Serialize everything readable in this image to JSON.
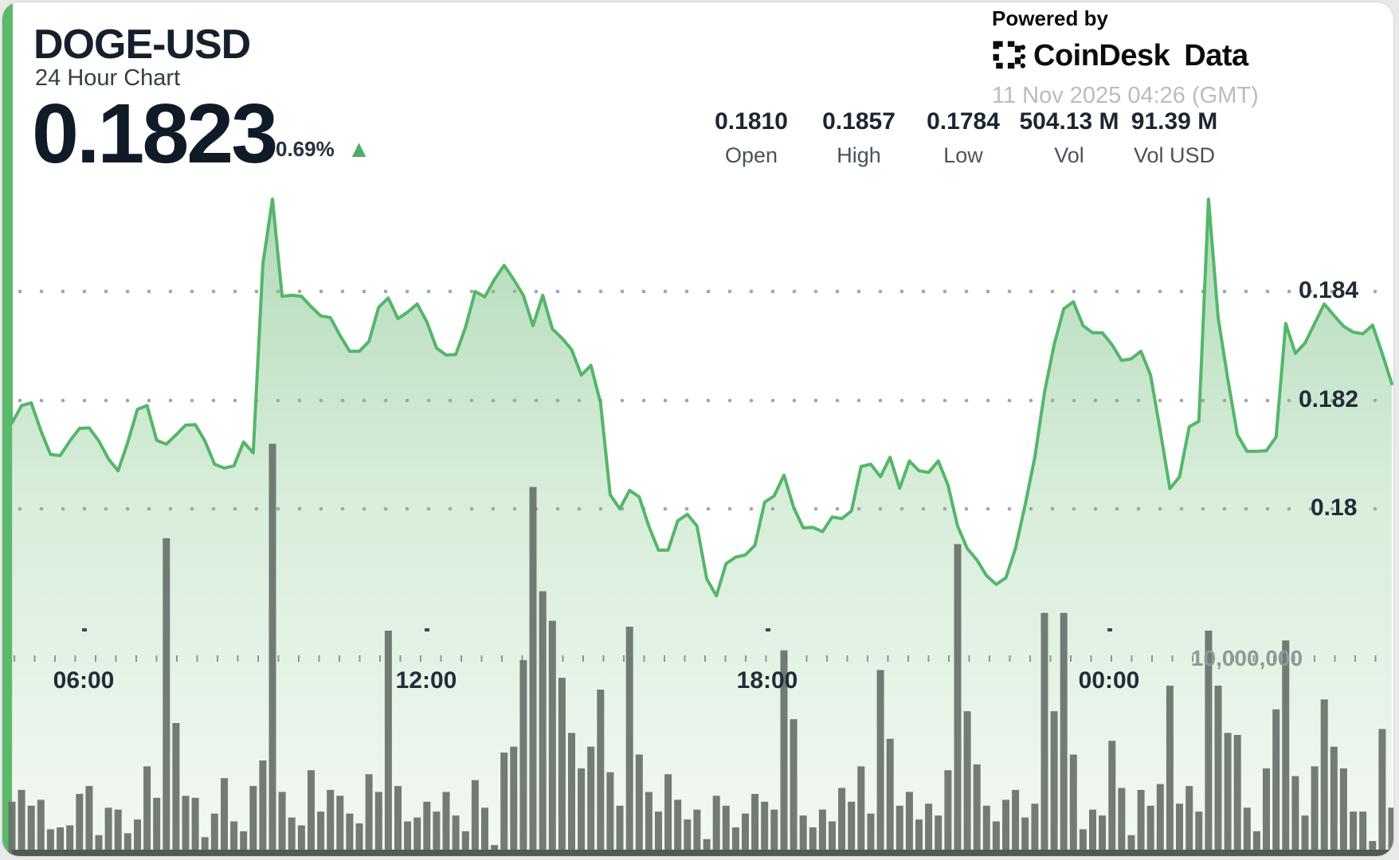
{
  "header": {
    "symbol": "DOGE-USD",
    "subtitle": "24 Hour Chart",
    "price": "0.1823",
    "change_percent": "0.69%",
    "change_direction": "up",
    "up_triangle": "▲"
  },
  "attribution": {
    "powered_by": "Powered by",
    "brand": "CoinDesk",
    "brand_suffix": "Data",
    "timestamp": "11 Nov 2025 04:26 (GMT)"
  },
  "stats": [
    {
      "value": "0.1810",
      "label": "Open"
    },
    {
      "value": "0.1857",
      "label": "High"
    },
    {
      "value": "0.1784",
      "label": "Low"
    },
    {
      "value": "504.13 M",
      "label": "Vol"
    },
    {
      "value": "91.39 M",
      "label": "Vol USD"
    }
  ],
  "colors": {
    "accent_bar": "#5cb96b",
    "price_line": "#55b669",
    "area_top": "#acd8b4",
    "area_mid": "#d1ead4",
    "area_bottom": "#f3f8f2",
    "volume_bar": "#67716a",
    "volume_baseline": "#525b52",
    "grid_dot": "#a5a5a5",
    "vol_grid_dash": "#7e867e",
    "up_green": "#4caf63"
  },
  "chart_data": {
    "type": "area",
    "title": "DOGE-USD 24 Hour Chart",
    "subtype": "price area line with volume bars",
    "summary": {
      "open": 0.181,
      "high": 0.1857,
      "low": 0.1784,
      "last": 0.1823,
      "volume": "504.13 M",
      "volume_usd": "91.39 M",
      "change_percent": 0.69
    },
    "x_axis": {
      "tick_labels": [
        "06:00",
        "12:00",
        "18:00",
        "00:00"
      ],
      "grid": false
    },
    "price_axis": {
      "tick_labels": [
        "0.184",
        "0.182",
        "0.18"
      ],
      "tick_values": [
        0.184,
        0.182,
        0.18
      ],
      "grid": "dotted",
      "side": "right"
    },
    "volume_axis": {
      "tick_labels": [
        "10,000,000"
      ],
      "tick_values": [
        10000000
      ],
      "grid": "dotted"
    },
    "interval_minutes": 10,
    "prices": [
      0.18158,
      0.1819,
      0.18195,
      0.18144,
      0.181,
      0.18098,
      0.18125,
      0.18148,
      0.18149,
      0.18125,
      0.18092,
      0.1807,
      0.18122,
      0.18183,
      0.1819,
      0.18126,
      0.18119,
      0.18136,
      0.18154,
      0.18155,
      0.18125,
      0.18082,
      0.18075,
      0.18079,
      0.18123,
      0.18103,
      0.1845,
      0.1857,
      0.18391,
      0.18393,
      0.18391,
      0.18372,
      0.18355,
      0.18352,
      0.18319,
      0.1829,
      0.1829,
      0.18308,
      0.18371,
      0.18388,
      0.1835,
      0.18362,
      0.18377,
      0.18344,
      0.18296,
      0.18283,
      0.18284,
      0.18334,
      0.184,
      0.1839,
      0.18422,
      0.18448,
      0.18422,
      0.18393,
      0.18337,
      0.18393,
      0.18331,
      0.18314,
      0.18293,
      0.18246,
      0.18264,
      0.18195,
      0.18026,
      0.18,
      0.18034,
      0.18022,
      0.17968,
      0.17924,
      0.17924,
      0.17978,
      0.1799,
      0.17968,
      0.17871,
      0.1784,
      0.17899,
      0.17911,
      0.17915,
      0.17933,
      0.18012,
      0.18024,
      0.18062,
      0.18003,
      0.17965,
      0.17966,
      0.17958,
      0.17985,
      0.17982,
      0.17996,
      0.18078,
      0.18082,
      0.18059,
      0.18095,
      0.18038,
      0.18088,
      0.1807,
      0.18067,
      0.18088,
      0.18044,
      0.17968,
      0.17927,
      0.17906,
      0.17877,
      0.17861,
      0.17873,
      0.17927,
      0.18007,
      0.18095,
      0.18214,
      0.18302,
      0.18368,
      0.18381,
      0.18337,
      0.18324,
      0.18324,
      0.18302,
      0.18273,
      0.18276,
      0.1829,
      0.18246,
      0.18144,
      0.18037,
      0.18059,
      0.18151,
      0.18161,
      0.1857,
      0.18352,
      0.18239,
      0.18136,
      0.18106,
      0.18106,
      0.18107,
      0.18132,
      0.18341,
      0.18286,
      0.18305,
      0.18341,
      0.18377,
      0.18356,
      0.18336,
      0.18325,
      0.18322,
      0.18338,
      0.18286,
      0.1823
    ],
    "volumes_millions": [
      2.8,
      3.4,
      2.6,
      2.9,
      1.4,
      1.5,
      1.6,
      3.2,
      3.6,
      1.1,
      2.5,
      2.4,
      1.2,
      1.9,
      4.6,
      3.0,
      16.2,
      6.8,
      3.1,
      3.0,
      1.0,
      2.2,
      4.0,
      1.8,
      1.3,
      3.6,
      4.9,
      21.0,
      3.3,
      2.0,
      1.6,
      4.4,
      2.3,
      3.4,
      3.1,
      2.2,
      1.7,
      4.2,
      3.3,
      11.5,
      3.6,
      1.8,
      2.0,
      2.8,
      2.3,
      3.3,
      2.1,
      1.3,
      3.9,
      2.5,
      0.6,
      5.3,
      5.6,
      10.0,
      18.8,
      13.5,
      12.0,
      9.1,
      6.3,
      4.5,
      5.6,
      8.5,
      4.3,
      2.6,
      11.7,
      5.2,
      3.3,
      2.3,
      4.2,
      2.9,
      1.9,
      2.4,
      0.9,
      3.1,
      2.6,
      1.5,
      2.2,
      3.2,
      2.8,
      2.4,
      10.5,
      7.0,
      2.1,
      1.5,
      2.4,
      1.8,
      3.5,
      2.8,
      4.6,
      2.2,
      9.5,
      6.0,
      2.6,
      3.3,
      1.9,
      2.7,
      2.1,
      4.4,
      15.9,
      7.4,
      4.7,
      2.6,
      1.8,
      2.9,
      3.4,
      2.0,
      2.7,
      12.4,
      7.4,
      12.4,
      5.2,
      1.4,
      2.4,
      2.1,
      5.9,
      3.5,
      1.1,
      3.4,
      2.6,
      3.7,
      8.7,
      2.7,
      3.6,
      2.3,
      11.5,
      8.7,
      6.3,
      6.2,
      2.5,
      1.3,
      4.5,
      7.5,
      11.0,
      4.1,
      2.1,
      4.6,
      8.0,
      5.6,
      4.5,
      2.3,
      2.3,
      0.8,
      6.5,
      2.5
    ]
  }
}
